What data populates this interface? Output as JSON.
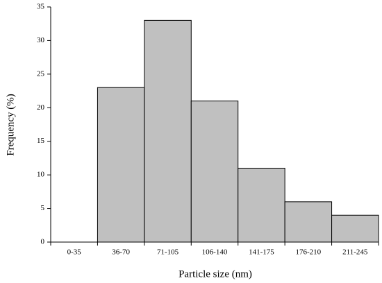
{
  "chart_data": {
    "type": "bar",
    "x_label": "Particle size (nm)",
    "y_label": "Frequency (%)",
    "categories": [
      "0-35",
      "36-70",
      "71-105",
      "106-140",
      "141-175",
      "176-210",
      "211-245"
    ],
    "values": [
      0,
      23,
      33,
      21,
      11,
      6,
      4
    ],
    "color": "#c0c0c0",
    "ylim": [
      0,
      35
    ],
    "yticks": [
      0,
      5,
      10,
      15,
      20,
      25,
      30,
      35
    ],
    "grid": false
  }
}
